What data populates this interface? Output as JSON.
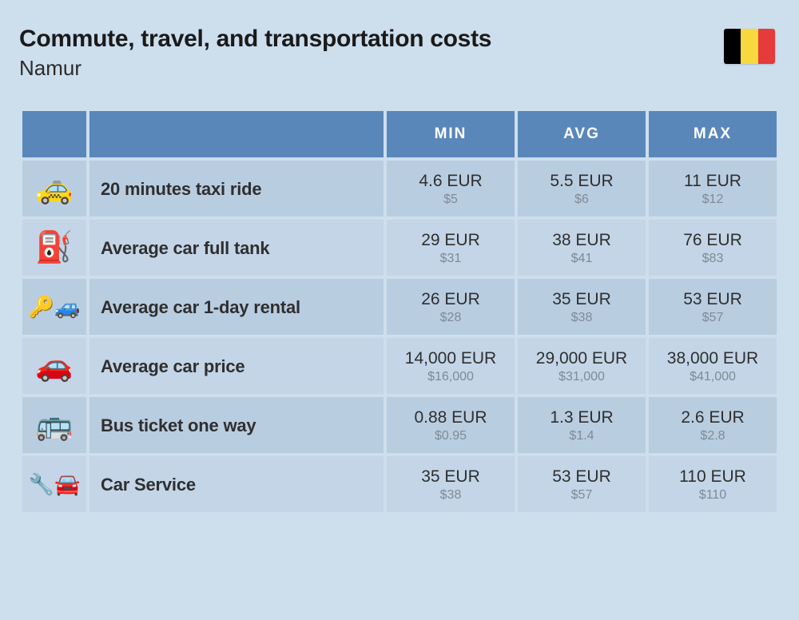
{
  "header": {
    "title": "Commute, travel, and transportation costs",
    "subtitle": "Namur",
    "flag_colors": [
      "#000000",
      "#f7d93e",
      "#e63b3b"
    ]
  },
  "columns": {
    "min": "MIN",
    "avg": "AVG",
    "max": "MAX"
  },
  "rows": [
    {
      "icon": "🚕",
      "label": "20 minutes taxi ride",
      "min_eur": "4.6 EUR",
      "min_usd": "$5",
      "avg_eur": "5.5 EUR",
      "avg_usd": "$6",
      "max_eur": "11 EUR",
      "max_usd": "$12"
    },
    {
      "icon": "⛽",
      "label": "Average car full tank",
      "min_eur": "29 EUR",
      "min_usd": "$31",
      "avg_eur": "38 EUR",
      "avg_usd": "$41",
      "max_eur": "76 EUR",
      "max_usd": "$83"
    },
    {
      "icon": "🔑🚙",
      "label": "Average car 1-day rental",
      "min_eur": "26 EUR",
      "min_usd": "$28",
      "avg_eur": "35 EUR",
      "avg_usd": "$38",
      "max_eur": "53 EUR",
      "max_usd": "$57"
    },
    {
      "icon": "🚗",
      "label": "Average car price",
      "min_eur": "14,000 EUR",
      "min_usd": "$16,000",
      "avg_eur": "29,000 EUR",
      "avg_usd": "$31,000",
      "max_eur": "38,000 EUR",
      "max_usd": "$41,000"
    },
    {
      "icon": "🚌",
      "label": "Bus ticket one way",
      "min_eur": "0.88 EUR",
      "min_usd": "$0.95",
      "avg_eur": "1.3 EUR",
      "avg_usd": "$1.4",
      "max_eur": "2.6 EUR",
      "max_usd": "$2.8"
    },
    {
      "icon": "🔧🚘",
      "label": "Car Service",
      "min_eur": "35 EUR",
      "min_usd": "$38",
      "avg_eur": "53 EUR",
      "avg_usd": "$57",
      "max_eur": "110 EUR",
      "max_usd": "$110"
    }
  ],
  "styles": {
    "page_bg": "#cddeed",
    "header_bg": "#5987ba",
    "header_text": "#ffffff",
    "cell_bg": "#b9cde1",
    "cell_bg_alt": "#c3d5e7",
    "eur_color": "#2f2f2f",
    "usd_color": "#7f8a96",
    "title_size_pt": 30,
    "subtitle_size_pt": 26,
    "label_size_pt": 22,
    "eur_size_pt": 21,
    "usd_size_pt": 16
  }
}
